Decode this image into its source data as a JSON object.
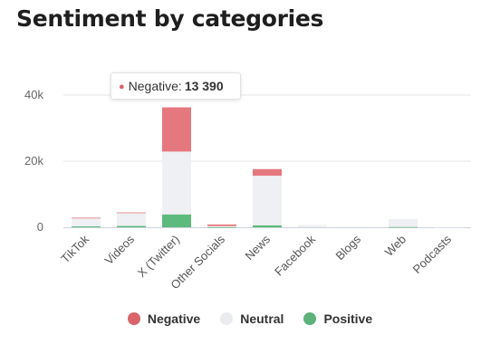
{
  "title": "Sentiment by categories",
  "colors": {
    "negative": "#e5787e",
    "neutral": "#eef0f3",
    "positive": "#5cba7d"
  },
  "chart_data": {
    "type": "bar",
    "stacked": true,
    "title": "Sentiment by categories",
    "categories": [
      "TikTok",
      "Videos",
      "X (Twitter)",
      "Other Socials",
      "News",
      "Facebook",
      "Blogs",
      "Web",
      "Podcasts"
    ],
    "series": [
      {
        "name": "Negative",
        "color": "#e5787e",
        "values": [
          100,
          200,
          13390,
          500,
          2000,
          0,
          0,
          0,
          0
        ]
      },
      {
        "name": "Neutral",
        "color": "#eef0f3",
        "values": [
          2500,
          3900,
          19000,
          300,
          15000,
          700,
          200,
          2400,
          100
        ]
      },
      {
        "name": "Positive",
        "color": "#5cba7d",
        "values": [
          300,
          400,
          3900,
          50,
          600,
          0,
          0,
          100,
          0
        ]
      }
    ],
    "yticks": [
      "0",
      "20k",
      "40k"
    ],
    "ylim": [
      0,
      40000
    ],
    "grid": true,
    "legend": "bottom"
  },
  "tooltip": {
    "series": "Negative",
    "label": "Negative:",
    "value": "13 390"
  },
  "legend": [
    {
      "label": "Negative",
      "color": "#d9646a"
    },
    {
      "label": "Neutral",
      "color": "#e9ebee"
    },
    {
      "label": "Positive",
      "color": "#5cb27a"
    }
  ]
}
